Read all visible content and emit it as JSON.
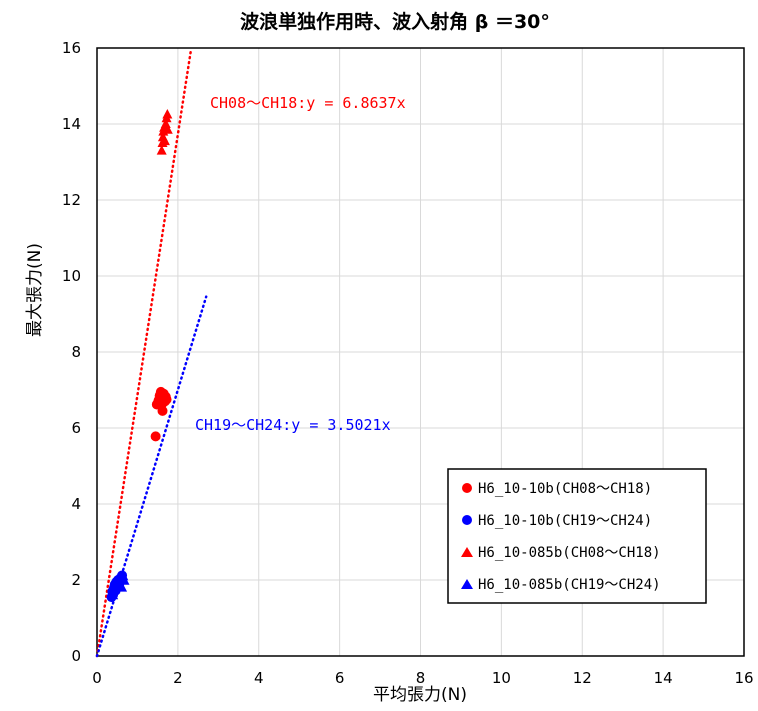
{
  "chart_data": {
    "type": "scatter",
    "title": "波浪単独作用時、波入射角 β ＝30°",
    "xlabel": "平均張力(N)",
    "ylabel": "最大張力(N)",
    "xlim": [
      0,
      16
    ],
    "ylim": [
      0,
      16
    ],
    "xticks": [
      0,
      2,
      4,
      6,
      8,
      10,
      12,
      14,
      16
    ],
    "yticks": [
      0,
      2,
      4,
      6,
      8,
      10,
      12,
      14,
      16
    ],
    "grid": true,
    "legend_position": "lower-right",
    "series": [
      {
        "name": "H6_10-10b(CH08～CH18)",
        "marker": "circle",
        "color": "#ff0000",
        "points": [
          [
            1.45,
            5.78
          ],
          [
            1.48,
            6.62
          ],
          [
            1.52,
            6.72
          ],
          [
            1.55,
            6.85
          ],
          [
            1.58,
            6.95
          ],
          [
            1.6,
            6.62
          ],
          [
            1.62,
            6.45
          ],
          [
            1.63,
            6.78
          ],
          [
            1.65,
            6.9
          ],
          [
            1.68,
            6.7
          ],
          [
            1.7,
            6.82
          ],
          [
            1.72,
            6.75
          ]
        ]
      },
      {
        "name": "H6_10-10b(CH19～CH24)",
        "marker": "circle",
        "color": "#0000ff",
        "points": [
          [
            0.36,
            1.55
          ],
          [
            0.38,
            1.7
          ],
          [
            0.4,
            1.62
          ],
          [
            0.42,
            1.8
          ],
          [
            0.44,
            1.88
          ],
          [
            0.46,
            1.72
          ],
          [
            0.48,
            1.95
          ],
          [
            0.5,
            1.82
          ],
          [
            0.52,
            2.0
          ],
          [
            0.55,
            1.9
          ],
          [
            0.58,
            2.05
          ],
          [
            0.62,
            2.12
          ]
        ]
      },
      {
        "name": "H6_10-085b(CH08～CH18)",
        "marker": "triangle",
        "color": "#ff0000",
        "points": [
          [
            1.6,
            13.3
          ],
          [
            1.62,
            13.5
          ],
          [
            1.63,
            13.65
          ],
          [
            1.64,
            13.8
          ],
          [
            1.66,
            13.9
          ],
          [
            1.68,
            13.55
          ],
          [
            1.7,
            14.0
          ],
          [
            1.72,
            14.15
          ],
          [
            1.74,
            14.25
          ],
          [
            1.75,
            13.85
          ]
        ]
      },
      {
        "name": "H6_10-085b(CH19～CH24)",
        "marker": "triangle",
        "color": "#0000ff",
        "points": [
          [
            0.4,
            1.6
          ],
          [
            0.45,
            1.75
          ],
          [
            0.5,
            1.85
          ],
          [
            0.55,
            1.95
          ],
          [
            0.6,
            2.05
          ],
          [
            0.62,
            1.8
          ],
          [
            0.65,
            2.1
          ],
          [
            0.68,
            1.98
          ]
        ]
      }
    ],
    "trendlines": [
      {
        "label": "CH08～CH18:y = 6.8637x",
        "slope": 6.8637,
        "x_range": [
          0,
          2.33
        ],
        "color": "#ff0000"
      },
      {
        "label": "CH19～CH24:y = 3.5021x",
        "slope": 3.5021,
        "x_range": [
          0,
          2.7
        ],
        "color": "#0000ff"
      }
    ]
  }
}
